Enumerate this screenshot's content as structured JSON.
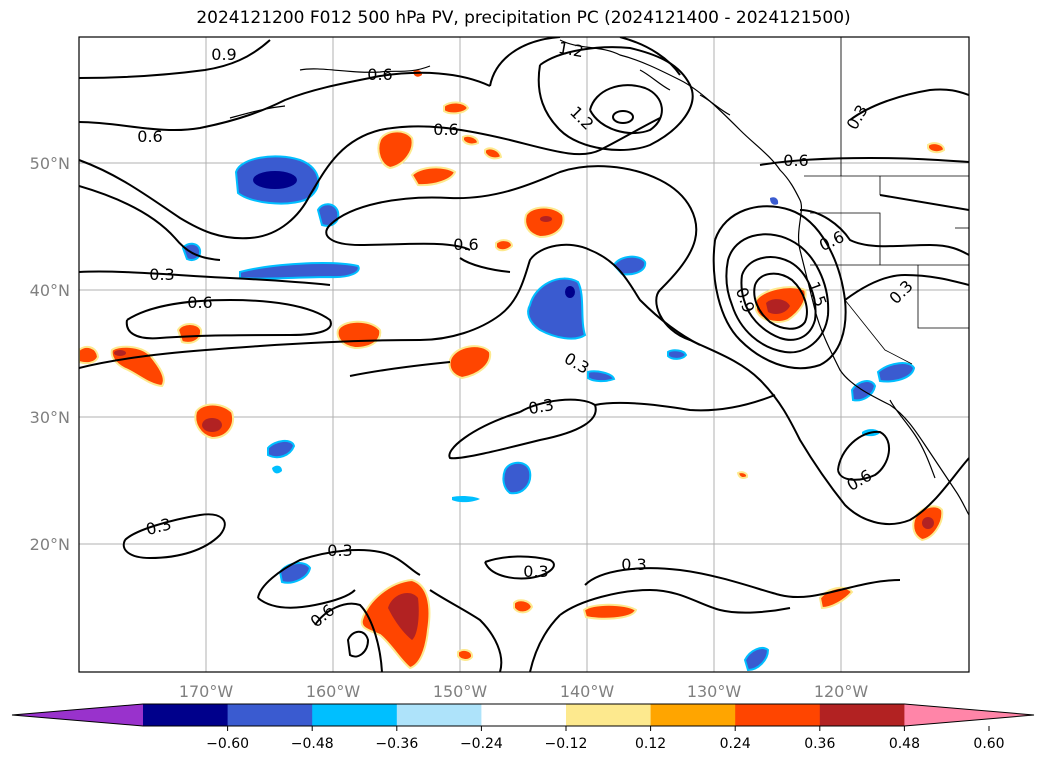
{
  "title": "2024121200 F012 500 hPa PV, precipitation PC (2024121400 - 2024121500)",
  "lat_labels": [
    "50°N",
    "40°N",
    "30°N",
    "20°N"
  ],
  "lon_labels": [
    "170°W",
    "160°W",
    "150°W",
    "140°W",
    "130°W",
    "120°W"
  ],
  "colorbar": {
    "ticks": [
      "−0.60",
      "−0.48",
      "−0.36",
      "−0.24",
      "−0.12",
      "0.12",
      "0.24",
      "0.36",
      "0.48",
      "0.60"
    ],
    "colors": [
      "#9932cc",
      "#00008b",
      "#3a5bd0",
      "#00bfff",
      "#aee3fa",
      "#ffffff",
      "#fde98e",
      "#ffa500",
      "#ff4500",
      "#b22222",
      "#ff85a8"
    ]
  },
  "contour_labels": [
    "0.9",
    "0.6",
    "1.2",
    "0.6",
    "0.6",
    "1.2",
    "0.3",
    "0.6",
    "0.3",
    "0.6",
    "0.6",
    "0.6",
    "0.9",
    "0.3",
    "0.3",
    "0.3",
    "0.6",
    "0.3",
    "0.3",
    "0.3",
    "0.6",
    "0.3",
    "0.3",
    "0.6",
    "0.3",
    "1.5"
  ],
  "map": {
    "lat_range": [
      10,
      60
    ],
    "lon_range": [
      -180,
      -110
    ],
    "contour_field": "500 hPa PV",
    "shading_field": "precipitation PC"
  }
}
